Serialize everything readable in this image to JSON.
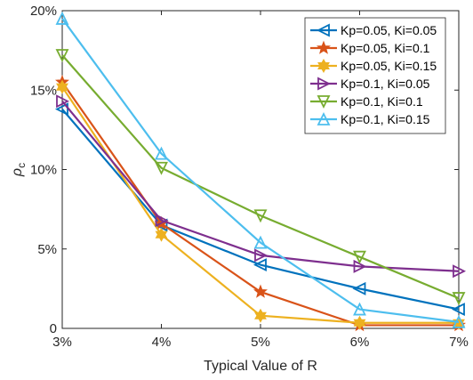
{
  "chart_data": {
    "type": "line",
    "categories": [
      "3%",
      "4%",
      "5%",
      "6%",
      "7%"
    ],
    "x": [
      3,
      4,
      5,
      6,
      7
    ],
    "xlabel": "Typical Value of R",
    "ylabel": "ρ",
    "ylabel_subscript": "c",
    "ylim": [
      0,
      20
    ],
    "yticks": [
      0,
      5,
      10,
      15,
      20
    ],
    "ytick_labels": [
      "0",
      "5%",
      "10%",
      "15%",
      "20%"
    ],
    "grid": false,
    "legend_position": "top-right",
    "series": [
      {
        "name": "Kp=0.05, Ki=0.05",
        "color": "#0072BD",
        "marker": "triangle-left",
        "values": [
          13.8,
          6.5,
          4.0,
          2.5,
          1.2
        ]
      },
      {
        "name": "Kp=0.05, Ki=0.1",
        "color": "#D95319",
        "marker": "star",
        "values": [
          15.5,
          6.6,
          2.3,
          0.2,
          0.2
        ]
      },
      {
        "name": "Kp=0.05, Ki=0.15",
        "color": "#EDB120",
        "marker": "hexagram",
        "values": [
          15.2,
          5.9,
          0.8,
          0.35,
          0.35
        ]
      },
      {
        "name": "Kp=0.1, Ki=0.05",
        "color": "#7E2F8E",
        "marker": "triangle-right",
        "values": [
          14.3,
          6.8,
          4.6,
          3.9,
          3.6
        ]
      },
      {
        "name": "Kp=0.1, Ki=0.1",
        "color": "#77AC30",
        "marker": "triangle-down",
        "values": [
          17.2,
          10.1,
          7.1,
          4.5,
          1.9
        ]
      },
      {
        "name": "Kp=0.1, Ki=0.15",
        "color": "#4DBEEE",
        "marker": "triangle-up",
        "values": [
          19.5,
          11.0,
          5.4,
          1.2,
          0.4
        ]
      }
    ]
  }
}
